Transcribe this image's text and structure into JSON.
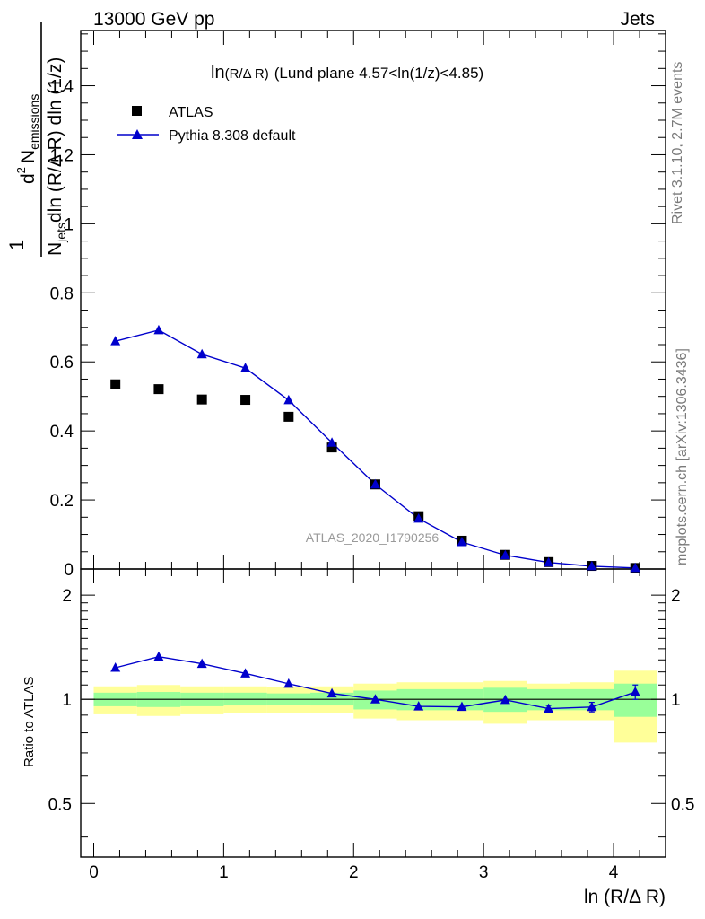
{
  "header": {
    "left": "13000 GeV pp",
    "right": "Jets"
  },
  "side_labels": {
    "rivet": "Rivet 3.1.10,  2.7M events",
    "mcplots": "mcplots.cern.ch [arXiv:1306.3436]"
  },
  "chart_data": [
    {
      "type": "scatter",
      "title_main": "ln",
      "title_small": "(R/Δ R)",
      "title_rest": "(Lund plane 4.57<ln(1/z)<4.85)",
      "ylabel": "1/N_jets d²N_emissions / dln(R/Δ R) dln(1/z)",
      "ylabel_parts": {
        "frac_one": "1",
        "njets": "N",
        "njets_sub": "jets",
        "njets_rest": "dln (R/Δ R) dln (1/z)",
        "d2": "d",
        "d2_sup": "2",
        "nem": "N",
        "nem_sub": "emissions"
      },
      "watermark": "ATLAS_2020_I1790256",
      "xlim": [
        -0.1,
        4.4
      ],
      "ylim": [
        0,
        1.56
      ],
      "y_ticks": [
        0,
        0.2,
        0.4,
        0.6,
        0.8,
        1,
        1.2,
        1.4
      ],
      "y_tick_labels": [
        "0",
        "0.2",
        "0.4",
        "0.6",
        "0.8",
        "1",
        "1.2",
        "1.4"
      ],
      "legend_position": "top-left",
      "x": [
        0.167,
        0.5,
        0.833,
        1.167,
        1.5,
        1.833,
        2.167,
        2.5,
        2.833,
        3.167,
        3.5,
        3.833,
        4.167
      ],
      "series": [
        {
          "name": "ATLAS",
          "marker": "square",
          "color": "#000000",
          "values": [
            0.535,
            0.521,
            0.491,
            0.49,
            0.441,
            0.352,
            0.245,
            0.153,
            0.082,
            0.041,
            0.02,
            0.009,
            0.003
          ]
        },
        {
          "name": "Pythia 8.308 default",
          "marker": "triangle",
          "color": "#0000cc",
          "values": [
            0.66,
            0.692,
            0.622,
            0.582,
            0.489,
            0.366,
            0.245,
            0.146,
            0.078,
            0.04,
            0.019,
            0.008,
            0.003
          ]
        }
      ]
    },
    {
      "type": "line",
      "ylabel": "Ratio to ATLAS",
      "xlabel": "ln (R/Δ R)",
      "xlim": [
        -0.1,
        4.4
      ],
      "ylim": [
        0.35,
        2.38
      ],
      "log_y": true,
      "x_ticks": [
        0,
        1,
        2,
        3,
        4
      ],
      "x_tick_labels": [
        "0",
        "1",
        "2",
        "3",
        "4"
      ],
      "y_ticks": [
        0.5,
        1,
        2
      ],
      "y_tick_labels": [
        "0.5",
        "1",
        "2"
      ],
      "reference_line": 1,
      "bands": {
        "bin_edges": [
          0,
          0.333,
          0.667,
          1,
          1.333,
          1.667,
          2,
          2.333,
          2.667,
          3,
          3.333,
          3.667,
          4,
          4.333
        ],
        "inner": {
          "color": "#99ff99",
          "low": [
            0.955,
            0.95,
            0.955,
            0.96,
            0.962,
            0.96,
            0.935,
            0.93,
            0.93,
            0.92,
            0.93,
            0.93,
            0.89
          ],
          "high": [
            1.045,
            1.05,
            1.045,
            1.045,
            1.04,
            1.045,
            1.06,
            1.07,
            1.07,
            1.08,
            1.07,
            1.07,
            1.11
          ]
        },
        "outer": {
          "color": "#ffff99",
          "low": [
            0.905,
            0.895,
            0.905,
            0.91,
            0.915,
            0.91,
            0.88,
            0.87,
            0.87,
            0.85,
            0.87,
            0.87,
            0.75
          ],
          "high": [
            1.09,
            1.1,
            1.09,
            1.09,
            1.085,
            1.09,
            1.11,
            1.12,
            1.12,
            1.13,
            1.11,
            1.12,
            1.21
          ]
        }
      },
      "series": [
        {
          "name": "Pythia 8.308 default",
          "color": "#0000cc",
          "values": [
            1.234,
            1.328,
            1.267,
            1.188,
            1.109,
            1.04,
            1.0,
            0.954,
            0.951,
            0.996,
            0.94,
            0.95,
            1.05
          ],
          "errors": [
            0,
            0,
            0,
            0,
            0,
            0,
            0,
            0,
            0,
            0,
            0.02,
            0.03,
            0.05
          ]
        }
      ]
    }
  ]
}
